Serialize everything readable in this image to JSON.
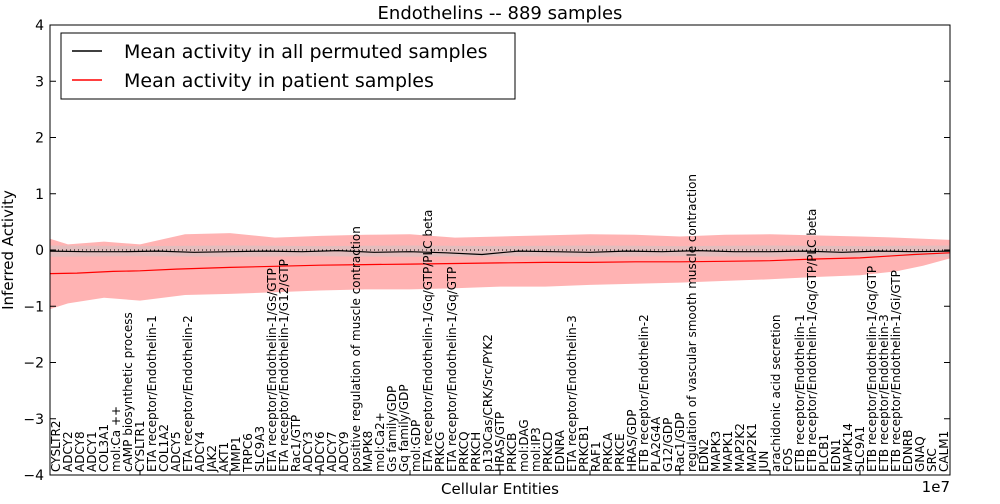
{
  "chart_data": {
    "type": "line",
    "title": "Endothelins -- 889 samples",
    "xlabel": "Cellular Entities",
    "ylabel": "Inferred Activity",
    "x_offset_label": "1e7",
    "ylim": [
      -4,
      4
    ],
    "yticks": [
      -4,
      -3,
      -2,
      -1,
      0,
      1,
      2,
      3,
      4
    ],
    "legend": {
      "position": "top-left",
      "entries": [
        {
          "name": "Mean activity in all permuted samples",
          "color": "#000000"
        },
        {
          "name": "Mean activity in patient samples",
          "color": "#ff0000"
        }
      ]
    },
    "colors": {
      "permuted": "#000000",
      "patient": "#ff0000",
      "band": "#ff8080",
      "band_permuted": "#c8c8c8"
    },
    "entities": [
      "CYSLTR2",
      "ADCY2",
      "ADCY8",
      "ADCY1",
      "COL3A1",
      "mol:Ca ++",
      "cAMP biosynthetic process",
      "CYSLTR1",
      "ETA receptor/Endothelin-1",
      "COL1A2",
      "ADCY5",
      "ETA receptor/Endothelin-2",
      "ADCY4",
      "JAK2",
      "AKT1",
      "MMP1",
      "TRPC6",
      "SLC9A3",
      "ETA receptor/Endothelin-1/Gs/GTP",
      "ETA receptor/Endothelin-1/G12/GTP",
      "Rac1/GTP",
      "ADCY3",
      "ADCY6",
      "ADCY7",
      "ADCY9",
      "positive regulation of muscle contraction",
      "MAPK8",
      "mol:Ca2+",
      "Gs family/GDP",
      "Gq family/GDP",
      "mol:GDP",
      "ETA receptor/Endothelin-1/Gq/GTP/PLC beta",
      "PRKCG",
      "ETA receptor/Endothelin-1/Gq/GTP",
      "PRKCQ",
      "PRKCH",
      "p130Cas/CRK/Src/PYK2",
      "HRAS/GTP",
      "PRKCB",
      "mol:DAG",
      "mol:IP3",
      "PRKCD",
      "EDNRA",
      "ETA receptor/Endothelin-3",
      "PRKCB1",
      "RAF1",
      "PRKCA",
      "PRKCE",
      "HRAS/GDP",
      "ETB receptor/Endothelin-2",
      "PLA2G4A",
      "G12/GDP",
      "Rac1/GDP",
      "regulation of vascular smooth muscle contraction",
      "EDN2",
      "MAPK3",
      "MAPK1",
      "MAP2K2",
      "MAP2K1",
      "JUN",
      "arachidonic acid secretion",
      "FOS",
      "ETB receptor/Endothelin-1",
      "ETB receptor/Endothelin-1/Gq/GTP/PLC beta",
      "PLCB1",
      "EDN1",
      "MAPK14",
      "SLC9A1",
      "ETB receptor/Endothelin-1/Gq/GTP",
      "ETB receptor/Endothelin-3",
      "ETB receptor/Endothelin-1/Gi/GTP",
      "EDNRB",
      "GNAQ",
      "SRC",
      "CALM1"
    ],
    "series": [
      {
        "name": "Mean activity in all permuted samples",
        "x": [
          0,
          0.04,
          0.08,
          0.12,
          0.16,
          0.2,
          0.24,
          0.28,
          0.32,
          0.36,
          0.4,
          0.44,
          0.48,
          0.52,
          0.56,
          0.6,
          0.64,
          0.68,
          0.72,
          0.76,
          0.8,
          0.84,
          0.88,
          0.92,
          0.96,
          1.0
        ],
        "values": [
          -0.02,
          -0.03,
          -0.03,
          -0.02,
          -0.04,
          -0.03,
          -0.02,
          -0.03,
          -0.01,
          -0.04,
          -0.03,
          -0.05,
          -0.08,
          -0.02,
          -0.03,
          -0.04,
          -0.02,
          -0.03,
          -0.01,
          -0.03,
          -0.03,
          -0.02,
          -0.04,
          -0.02,
          -0.03,
          -0.02
        ]
      },
      {
        "name": "Mean activity in patient samples",
        "x": [
          0,
          0.03,
          0.07,
          0.1,
          0.14,
          0.2,
          0.25,
          0.3,
          0.35,
          0.4,
          0.45,
          0.5,
          0.55,
          0.6,
          0.65,
          0.7,
          0.75,
          0.8,
          0.85,
          0.9,
          0.93,
          0.96,
          1.0
        ],
        "values": [
          -0.42,
          -0.41,
          -0.38,
          -0.37,
          -0.34,
          -0.31,
          -0.29,
          -0.27,
          -0.26,
          -0.25,
          -0.24,
          -0.23,
          -0.22,
          -0.22,
          -0.21,
          -0.21,
          -0.2,
          -0.19,
          -0.16,
          -0.14,
          -0.11,
          -0.08,
          -0.05
        ]
      }
    ],
    "patient_band": {
      "x": [
        0,
        0.02,
        0.06,
        0.1,
        0.15,
        0.2,
        0.25,
        0.3,
        0.35,
        0.4,
        0.45,
        0.5,
        0.55,
        0.6,
        0.65,
        0.7,
        0.75,
        0.8,
        0.85,
        0.9,
        0.94,
        0.97,
        1.0
      ],
      "upper": [
        0.2,
        0.1,
        0.15,
        0.1,
        0.28,
        0.3,
        0.22,
        0.25,
        0.27,
        0.28,
        0.22,
        0.24,
        0.26,
        0.28,
        0.27,
        0.24,
        0.27,
        0.28,
        0.26,
        0.24,
        0.22,
        0.2,
        0.18
      ],
      "lower": [
        -1.05,
        -0.95,
        -0.85,
        -0.9,
        -0.8,
        -0.78,
        -0.75,
        -0.72,
        -0.7,
        -0.7,
        -0.68,
        -0.65,
        -0.65,
        -0.62,
        -0.6,
        -0.58,
        -0.55,
        -0.52,
        -0.48,
        -0.45,
        -0.38,
        -0.28,
        -0.15
      ]
    },
    "permuted_band": {
      "x": [
        0,
        0.1,
        0.2,
        0.3,
        0.4,
        0.5,
        0.6,
        0.7,
        0.8,
        0.9,
        1.0
      ],
      "upper": [
        0.08,
        0.07,
        0.08,
        0.07,
        0.08,
        0.07,
        0.08,
        0.07,
        0.08,
        0.07,
        0.08
      ],
      "lower": [
        -0.12,
        -0.11,
        -0.12,
        -0.11,
        -0.12,
        -0.11,
        -0.12,
        -0.11,
        -0.12,
        -0.11,
        -0.12
      ]
    }
  }
}
